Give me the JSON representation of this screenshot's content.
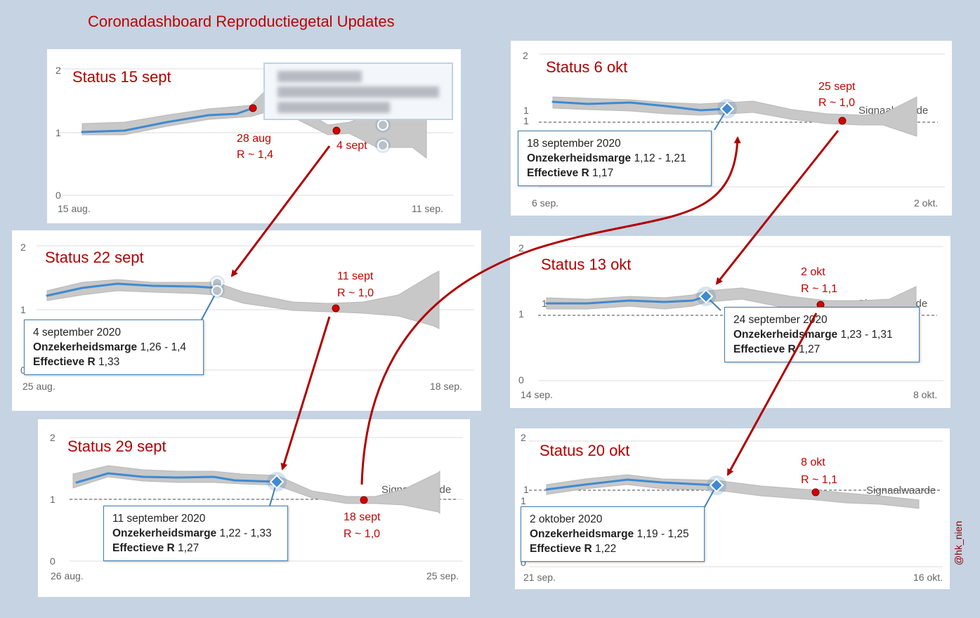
{
  "title": "Coronadashboard Reproductiegetal Updates",
  "signature": "@hk_nien",
  "colors": {
    "title": "#c00000",
    "line": "#3f8ad0",
    "band": "#c8c8c8",
    "annotation": "#d40000",
    "arrow": "#b00000",
    "tooltip_border": "#3f7eb8",
    "background": "#c6d3e2"
  },
  "chart_data": [
    {
      "type": "line",
      "title": "Status 15 sept",
      "y_ticks": [
        "2",
        "1",
        "0"
      ],
      "ylim": [
        0,
        2
      ],
      "x_tick_labels": [
        "15 aug.",
        "11 sep."
      ],
      "series": [
        {
          "x": [
            "2020-08-15",
            "2020-08-18",
            "2020-08-21",
            "2020-08-24",
            "2020-08-27",
            "2020-08-28"
          ],
          "y": [
            1.0,
            1.04,
            1.12,
            1.2,
            1.28,
            1.4
          ]
        },
        {
          "x": [
            "2020-08-28",
            "2020-08-31",
            "2020-09-03",
            "2020-09-04",
            "2020-09-06",
            "2020-09-08"
          ],
          "y": [
            1.4,
            1.3,
            1.1,
            1.05,
            1.0,
            1.15
          ]
        }
      ],
      "annotations": [
        {
          "x": "2020-08-28",
          "y": 1.4,
          "lines": [
            "28 aug",
            "R ~ 1,4"
          ]
        },
        {
          "x": "2020-09-04",
          "y": 1.05,
          "lines": [
            "4 sept"
          ]
        }
      ],
      "tooltip": null
    },
    {
      "type": "line",
      "title": "Status 22 sept",
      "y_ticks": [
        "2",
        "1",
        "0"
      ],
      "ylim": [
        0,
        2
      ],
      "x_tick_labels": [
        "25 aug.",
        "18 sep."
      ],
      "annotations": [
        {
          "x": "2020-09-11",
          "y": 1.0,
          "lines": [
            "11 sept",
            "R ~ 1,0"
          ]
        }
      ],
      "tooltip": {
        "date": "4 september 2020",
        "margin_label": "Onzekerheidsmarge",
        "margin_value": "1,26 - 1,4",
        "r_label": "Effectieve R",
        "r_value": "1,33"
      }
    },
    {
      "type": "line",
      "title": "Status 29 sept",
      "y_ticks": [
        "2",
        "1",
        "0"
      ],
      "ylim": [
        0,
        2
      ],
      "x_tick_labels": [
        "26 aug.",
        "25 sep."
      ],
      "signal_label": "Signaalwaarde",
      "annotations": [
        {
          "x": "2020-09-18",
          "y": 1.0,
          "lines": [
            "18 sept",
            "R ~ 1,0"
          ]
        }
      ],
      "tooltip": {
        "date": "11 september 2020",
        "margin_label": "Onzekerheidsmarge",
        "margin_value": "1,22 - 1,33",
        "r_label": "Effectieve R",
        "r_value": "1,27"
      }
    },
    {
      "type": "line",
      "title": "Status 6 okt",
      "y_ticks": [
        "2",
        "1",
        "1"
      ],
      "ylim": [
        0,
        2
      ],
      "x_tick_labels": [
        "6 sep.",
        "2 okt."
      ],
      "signal_label": "Signaalwaarde",
      "annotations": [
        {
          "x": "2020-09-25",
          "y": 1.0,
          "lines": [
            "25 sept",
            "R ~ 1,0"
          ]
        }
      ],
      "tooltip": {
        "date": "18 september 2020",
        "margin_label": "Onzekerheidsmarge",
        "margin_value": "1,12 - 1,21",
        "r_label": "Effectieve R",
        "r_value": "1,17"
      }
    },
    {
      "type": "line",
      "title": "Status 13 okt",
      "y_ticks": [
        "2",
        "1",
        "1",
        "0"
      ],
      "ylim": [
        0,
        2
      ],
      "x_tick_labels": [
        "14 sep.",
        "8 okt."
      ],
      "signal_label": "Signaalwaarde",
      "annotations": [
        {
          "x": "2020-10-02",
          "y": 1.1,
          "lines": [
            "2 okt",
            "R ~ 1,1"
          ]
        }
      ],
      "tooltip": {
        "date": "24 september 2020",
        "margin_label": "Onzekerheidsmarge",
        "margin_value": "1,23 - 1,31",
        "r_label": "Effectieve R",
        "r_value": "1,27"
      }
    },
    {
      "type": "line",
      "title": "Status 20 okt",
      "y_ticks": [
        "2",
        "1",
        "1",
        "0"
      ],
      "ylim": [
        0,
        2
      ],
      "x_tick_labels": [
        "21 sep.",
        "16 okt."
      ],
      "signal_label": "Signaalwaarde",
      "annotations": [
        {
          "x": "2020-10-08",
          "y": 1.1,
          "lines": [
            "8 okt",
            "R ~ 1,1"
          ]
        }
      ],
      "tooltip": {
        "date": "2 oktober 2020",
        "margin_label": "Onzekerheidsmarge",
        "margin_value": "1,19 - 1,25",
        "r_label": "Effectieve R",
        "r_value": "1,22"
      }
    }
  ]
}
